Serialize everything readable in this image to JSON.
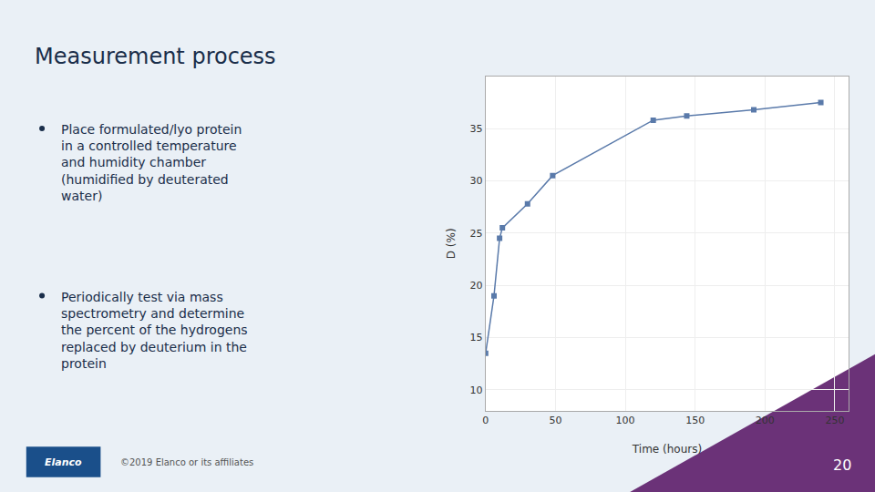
{
  "chart_data": {
    "type": "line",
    "title": "Measurement process",
    "x": [
      0,
      6,
      10,
      12,
      30,
      48,
      120,
      144,
      192,
      240
    ],
    "values": [
      13.5,
      19.0,
      24.5,
      25.5,
      27.8,
      30.5,
      35.8,
      36.2,
      36.8,
      37.5
    ],
    "color": "#5a7aaa",
    "marker": "square",
    "xlabel": "Time (hours)",
    "ylabel": "D (%)",
    "xlim": [
      0,
      260
    ],
    "ylim": [
      8,
      40
    ],
    "xticks": [
      0,
      50,
      100,
      150,
      200,
      250
    ],
    "yticks": [
      10,
      15,
      20,
      25,
      30,
      35
    ],
    "grid": true,
    "annotations": [
      "Place formulated/lyo protein\nin a controlled temperature\nand humidity chamber\n(humidified by deuterated\nwater)",
      "Periodically test via mass\nspectrometry and determine\nthe percent of the hydrogens\nreplaced by deuterium in the\nprotein",
      "Elanco",
      "©2019 Elanco or its affiliates",
      "20"
    ]
  }
}
